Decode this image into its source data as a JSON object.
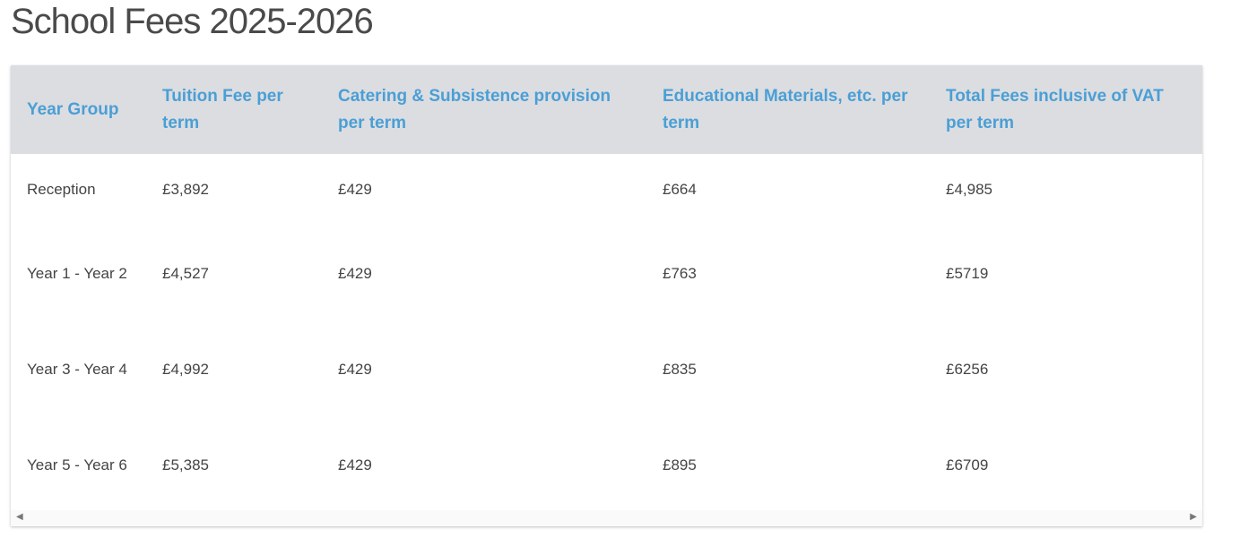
{
  "header": {
    "title": "School Fees 2025-2026"
  },
  "table": {
    "columns": [
      "Year Group",
      "Tuition Fee per term",
      "Catering & Subsistence provision per term",
      "Educational Materials, etc. per term",
      "Total Fees inclusive of VAT per term"
    ],
    "rows": [
      [
        "Reception",
        "£3,892",
        "£429",
        "£664",
        "£4,985"
      ],
      [
        "Year 1 - Year 2",
        "£4,527",
        "£429",
        "£763",
        "£5719"
      ],
      [
        "Year 3 - Year 4",
        "£4,992",
        "£429",
        "£835",
        "£6256"
      ],
      [
        "Year 5 - Year 6",
        "£5,385",
        "£429",
        "£895",
        "£6709"
      ]
    ]
  }
}
